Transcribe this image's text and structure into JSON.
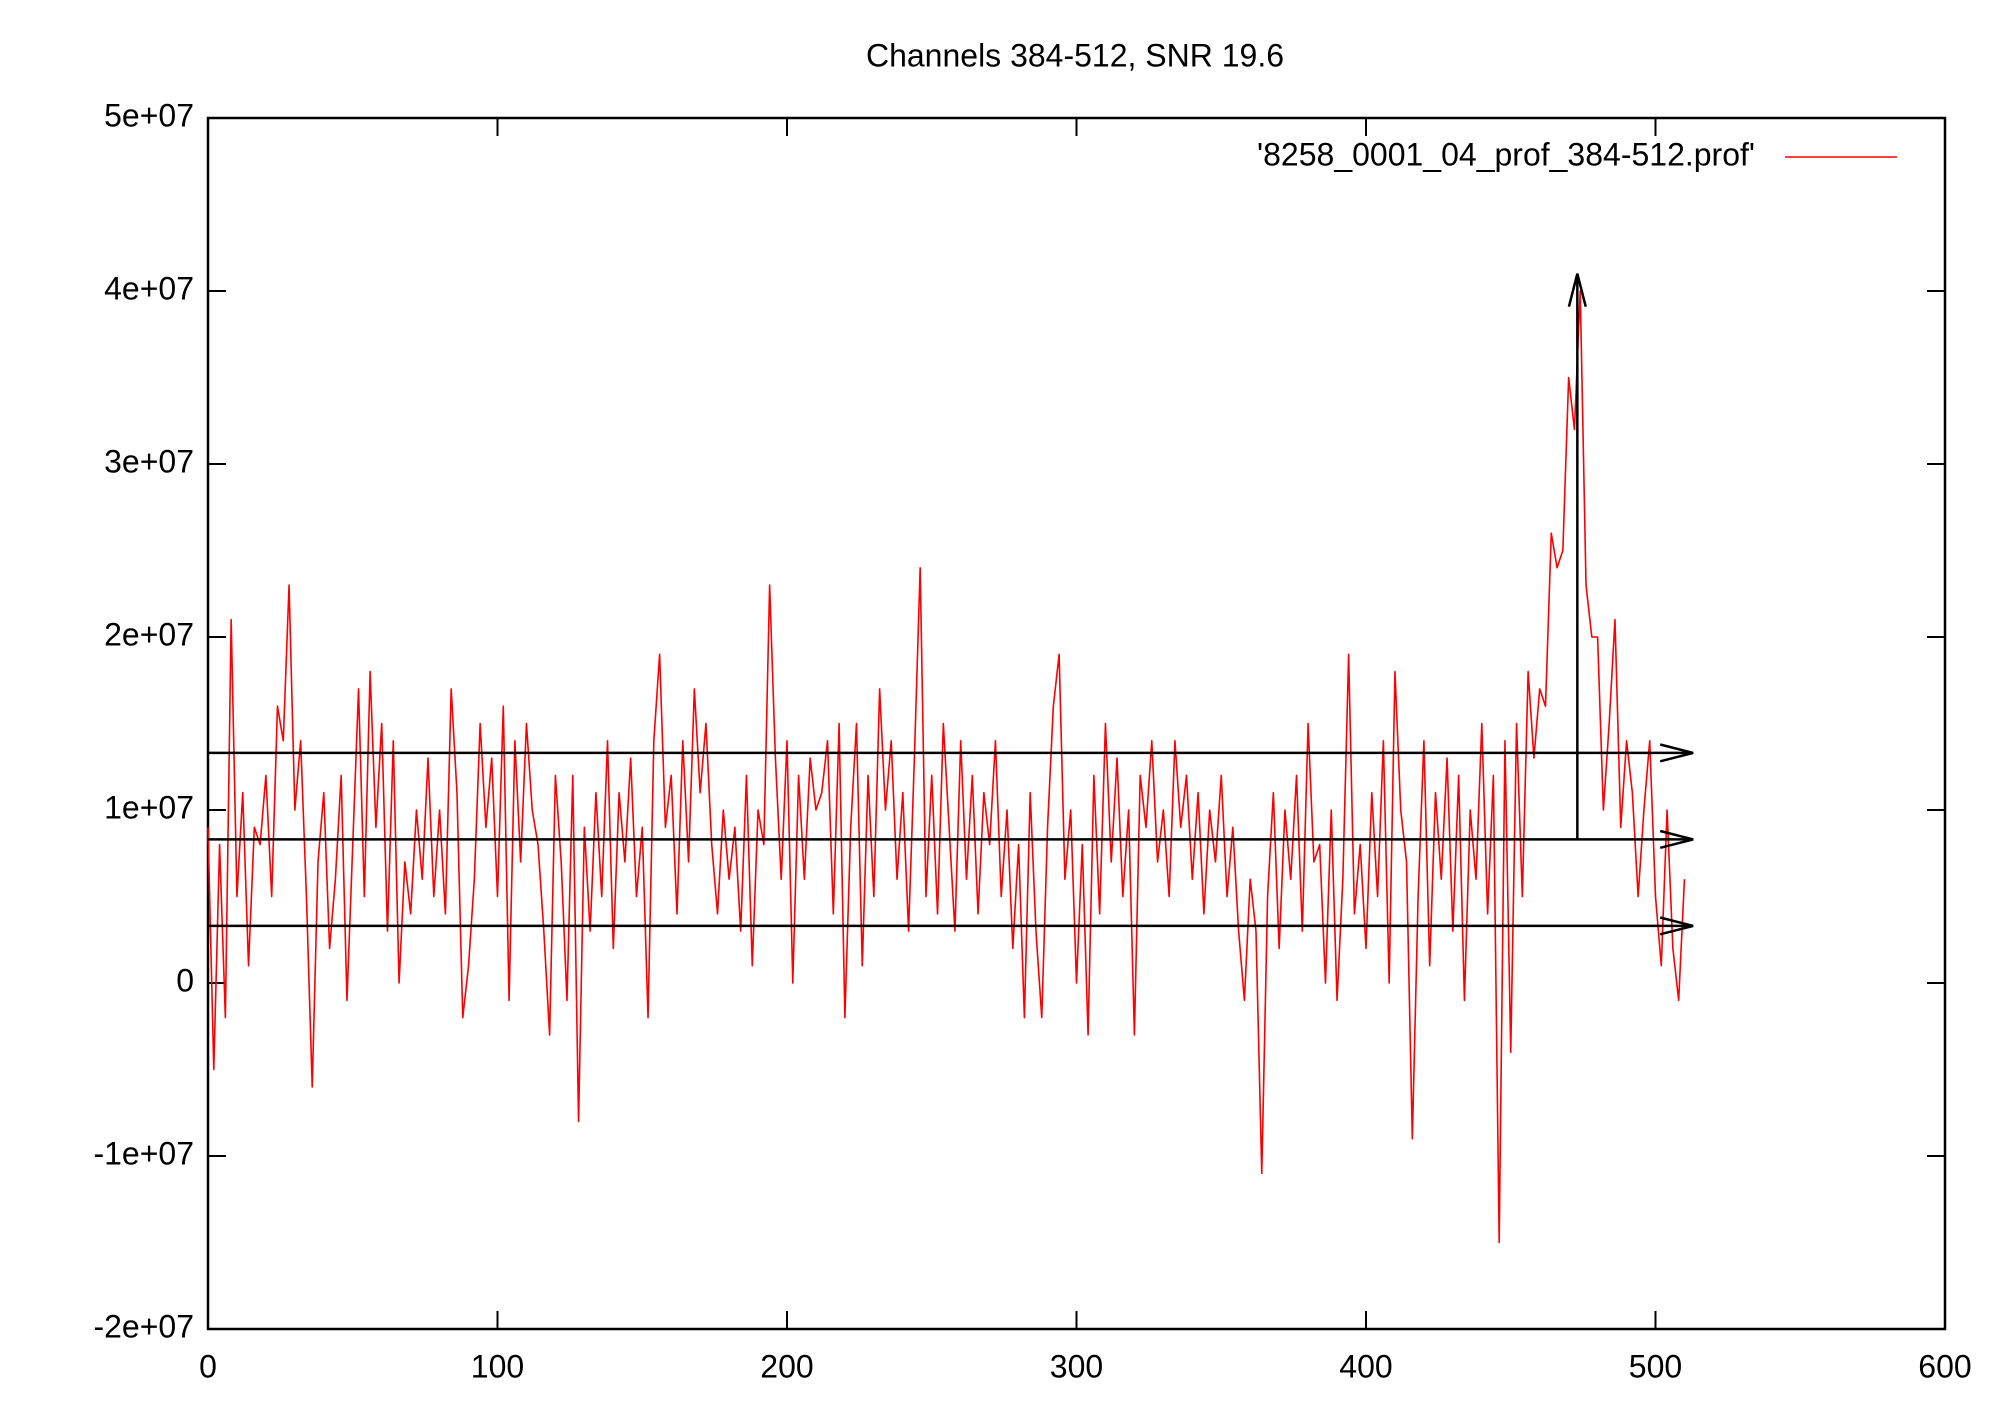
{
  "chart_data": {
    "type": "line",
    "title": "Channels 384-512, SNR 19.6",
    "series": [
      {
        "name": "'8258_0001_04_prof_384-512.prof'",
        "color": "#ff0000",
        "x": [
          0,
          2,
          4,
          6,
          8,
          10,
          12,
          14,
          16,
          18,
          20,
          22,
          24,
          26,
          28,
          30,
          32,
          34,
          36,
          38,
          40,
          42,
          44,
          46,
          48,
          50,
          52,
          54,
          56,
          58,
          60,
          62,
          64,
          66,
          68,
          70,
          72,
          74,
          76,
          78,
          80,
          82,
          84,
          86,
          88,
          90,
          92,
          94,
          96,
          98,
          100,
          102,
          104,
          106,
          108,
          110,
          112,
          114,
          116,
          118,
          120,
          122,
          124,
          126,
          128,
          130,
          132,
          134,
          136,
          138,
          140,
          142,
          144,
          146,
          148,
          150,
          152,
          154,
          156,
          158,
          160,
          162,
          164,
          166,
          168,
          170,
          172,
          174,
          176,
          178,
          180,
          182,
          184,
          186,
          188,
          190,
          192,
          194,
          196,
          198,
          200,
          202,
          204,
          206,
          208,
          210,
          212,
          214,
          216,
          218,
          220,
          222,
          224,
          226,
          228,
          230,
          232,
          234,
          236,
          238,
          240,
          242,
          244,
          246,
          248,
          250,
          252,
          254,
          256,
          258,
          260,
          262,
          264,
          266,
          268,
          270,
          272,
          274,
          276,
          278,
          280,
          282,
          284,
          286,
          288,
          290,
          292,
          294,
          296,
          298,
          300,
          302,
          304,
          306,
          308,
          310,
          312,
          314,
          316,
          318,
          320,
          322,
          324,
          326,
          328,
          330,
          332,
          334,
          336,
          338,
          340,
          342,
          344,
          346,
          348,
          350,
          352,
          354,
          356,
          358,
          360,
          362,
          364,
          366,
          368,
          370,
          372,
          374,
          376,
          378,
          380,
          382,
          384,
          386,
          388,
          390,
          392,
          394,
          396,
          398,
          400,
          402,
          404,
          406,
          408,
          410,
          412,
          414,
          416,
          418,
          420,
          422,
          424,
          426,
          428,
          430,
          432,
          434,
          436,
          438,
          440,
          442,
          444,
          446,
          448,
          450,
          452,
          454,
          456,
          458,
          460,
          462,
          464,
          466,
          468,
          470,
          472,
          474,
          476,
          478,
          480,
          482,
          484,
          486,
          488,
          490,
          492,
          494,
          496,
          498,
          500,
          502,
          504,
          506,
          508,
          510
        ],
        "values": [
          9000000.0,
          -5000000.0,
          8000000.0,
          -2000000.0,
          21000000.0,
          5000000.0,
          11000000.0,
          1000000.0,
          9000000.0,
          8000000.0,
          12000000.0,
          5000000.0,
          16000000.0,
          14000000.0,
          23000000.0,
          10000000.0,
          14000000.0,
          5000000.0,
          -6000000.0,
          7000000.0,
          11000000.0,
          2000000.0,
          6000000.0,
          12000000.0,
          -1000000.0,
          8000000.0,
          17000000.0,
          5000000.0,
          18000000.0,
          9000000.0,
          15000000.0,
          3000000.0,
          14000000.0,
          0,
          7000000.0,
          4000000.0,
          10000000.0,
          6000000.0,
          13000000.0,
          5000000.0,
          10000000.0,
          4000000.0,
          17000000.0,
          11000000.0,
          -2000000.0,
          1000000.0,
          6000000.0,
          15000000.0,
          9000000.0,
          13000000.0,
          5000000.0,
          16000000.0,
          -1000000.0,
          14000000.0,
          7000000.0,
          15000000.0,
          10000000.0,
          8000000.0,
          3000000.0,
          -3000000.0,
          12000000.0,
          7000000.0,
          -1000000.0,
          12000000.0,
          -8000000.0,
          9000000.0,
          3000000.0,
          11000000.0,
          5000000.0,
          14000000.0,
          2000000.0,
          11000000.0,
          7000000.0,
          13000000.0,
          5000000.0,
          9000000.0,
          -2000000.0,
          14000000.0,
          19000000.0,
          9000000.0,
          12000000.0,
          4000000.0,
          14000000.0,
          7000000.0,
          17000000.0,
          11000000.0,
          15000000.0,
          8000000.0,
          4000000.0,
          10000000.0,
          6000000.0,
          9000000.0,
          3000000.0,
          12000000.0,
          1000000.0,
          10000000.0,
          8000000.0,
          23000000.0,
          13000000.0,
          6000000.0,
          14000000.0,
          0,
          12000000.0,
          6000000.0,
          13000000.0,
          10000000.0,
          11000000.0,
          14000000.0,
          4000000.0,
          15000000.0,
          -2000000.0,
          9000000.0,
          15000000.0,
          1000000.0,
          12000000.0,
          5000000.0,
          17000000.0,
          10000000.0,
          14000000.0,
          6000000.0,
          11000000.0,
          3000000.0,
          13000000.0,
          24000000.0,
          5000000.0,
          12000000.0,
          4000000.0,
          15000000.0,
          9000000.0,
          3000000.0,
          14000000.0,
          6000000.0,
          12000000.0,
          4000000.0,
          11000000.0,
          8000000.0,
          14000000.0,
          5000000.0,
          10000000.0,
          2000000.0,
          8000000.0,
          -2000000.0,
          11000000.0,
          3000000.0,
          -2000000.0,
          9000000.0,
          16000000.0,
          19000000.0,
          6000000.0,
          10000000.0,
          0,
          8000000.0,
          -3000000.0,
          12000000.0,
          4000000.0,
          15000000.0,
          7000000.0,
          13000000.0,
          5000000.0,
          10000000.0,
          -3000000.0,
          12000000.0,
          9000000.0,
          14000000.0,
          7000000.0,
          10000000.0,
          5000000.0,
          14000000.0,
          9000000.0,
          12000000.0,
          6000000.0,
          11000000.0,
          4000000.0,
          10000000.0,
          7000000.0,
          12000000.0,
          5000000.0,
          9000000.0,
          3000000.0,
          -1000000.0,
          6000000.0,
          3000000.0,
          -11000000.0,
          5000000.0,
          11000000.0,
          2000000.0,
          10000000.0,
          6000000.0,
          12000000.0,
          3000000.0,
          15000000.0,
          7000000.0,
          8000000.0,
          0,
          10000000.0,
          -1000000.0,
          6000000.0,
          19000000.0,
          4000000.0,
          8000000.0,
          2000000.0,
          11000000.0,
          5000000.0,
          14000000.0,
          0,
          18000000.0,
          10000000.0,
          7000000.0,
          -9000000.0,
          5000000.0,
          14000000.0,
          1000000.0,
          11000000.0,
          6000000.0,
          13000000.0,
          3000000.0,
          12000000.0,
          -1000000.0,
          10000000.0,
          6000000.0,
          15000000.0,
          4000000.0,
          12000000.0,
          -15000000.0,
          14000000.0,
          -4000000.0,
          15000000.0,
          5000000.0,
          18000000.0,
          13000000.0,
          17000000.0,
          16000000.0,
          26000000.0,
          24000000.0,
          25000000.0,
          35000000.0,
          32000000.0,
          40000000.0,
          23000000.0,
          20000000.0,
          20000000.0,
          10000000.0,
          15000000.0,
          21000000.0,
          9000000.0,
          14000000.0,
          11000000.0,
          5000000.0,
          10000000.0,
          14000000.0,
          5000000.0,
          1000000.0,
          10000000.0,
          2000000.0,
          -1000000.0,
          6000000.0
        ]
      }
    ],
    "arrows": [
      {
        "x1": 0,
        "y1": 13300000.0,
        "x2": 513,
        "y2": 13300000.0
      },
      {
        "x1": 0,
        "y1": 8300000.0,
        "x2": 513,
        "y2": 8300000.0
      },
      {
        "x1": 0,
        "y1": 3300000.0,
        "x2": 513,
        "y2": 3300000.0
      },
      {
        "x1": 473,
        "y1": 8300000.0,
        "x2": 473,
        "y2": 41000000.0
      }
    ],
    "xlim": [
      0,
      600
    ],
    "xticks": [
      0,
      100,
      200,
      300,
      400,
      500,
      600
    ],
    "ylim": [
      -20000000.0,
      50000000.0
    ],
    "yticks": [
      {
        "value": -20000000.0,
        "label": "-2e+07"
      },
      {
        "value": -10000000.0,
        "label": "-1e+07"
      },
      0,
      {
        "value": 10000000.0,
        "label": "1e+07"
      },
      {
        "value": 20000000.0,
        "label": "2e+07"
      },
      {
        "value": 30000000.0,
        "label": "3e+07"
      },
      {
        "value": 40000000.0,
        "label": "4e+07"
      },
      {
        "value": 50000000.0,
        "label": "5e+07"
      }
    ],
    "legend": "top-right"
  }
}
